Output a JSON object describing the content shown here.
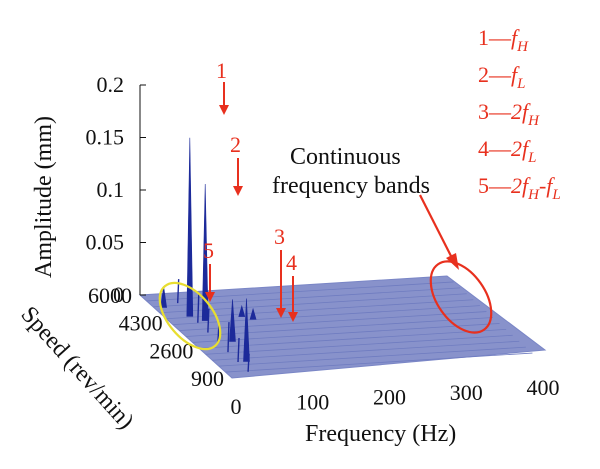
{
  "chart_data": {
    "type": "waterfall-3d",
    "title": "",
    "xlabel": "Frequency (Hz)",
    "ylabel": "Speed (rev/min)",
    "zlabel": "Amplitude (mm)",
    "x_ticks": [
      "0",
      "100",
      "200",
      "300",
      "400"
    ],
    "y_ticks": [
      "900",
      "2600",
      "4300",
      "6000"
    ],
    "z_ticks": [
      "0",
      "0.05",
      "0.1",
      "0.15",
      "0.2"
    ],
    "xlim": [
      0,
      400
    ],
    "ylim": [
      900,
      6000
    ],
    "zlim": [
      0,
      0.2
    ],
    "accent_color": "#e8301e",
    "surface_color": "#7a86c6",
    "peak_color": "#1c2a9a",
    "highlight_color": "#e8de30",
    "peak_labels": [
      "1",
      "2",
      "3",
      "4",
      "5"
    ],
    "peaks": [
      {
        "label": "1",
        "amplitude": 0.17
      },
      {
        "label": "2",
        "amplitude": 0.13
      },
      {
        "label": "3",
        "amplitude": 0.01
      },
      {
        "label": "4",
        "amplitude": 0.01
      },
      {
        "label": "5",
        "amplitude": 0.02
      }
    ],
    "annotation": [
      "Continuous",
      "frequency bands"
    ],
    "legend": [
      {
        "num": "1",
        "sep": "—",
        "text": "f",
        "sub": "H"
      },
      {
        "num": "2",
        "sep": "—",
        "text": "f",
        "sub": "L"
      },
      {
        "num": "3",
        "sep": "—",
        "text": "2f",
        "sub": "H"
      },
      {
        "num": "4",
        "sep": "—",
        "text": "2f",
        "sub": "L"
      },
      {
        "num": "5",
        "sep": "—",
        "text": "2f",
        "sub": "H",
        "extra": "-f",
        "sub2": "L"
      }
    ]
  }
}
